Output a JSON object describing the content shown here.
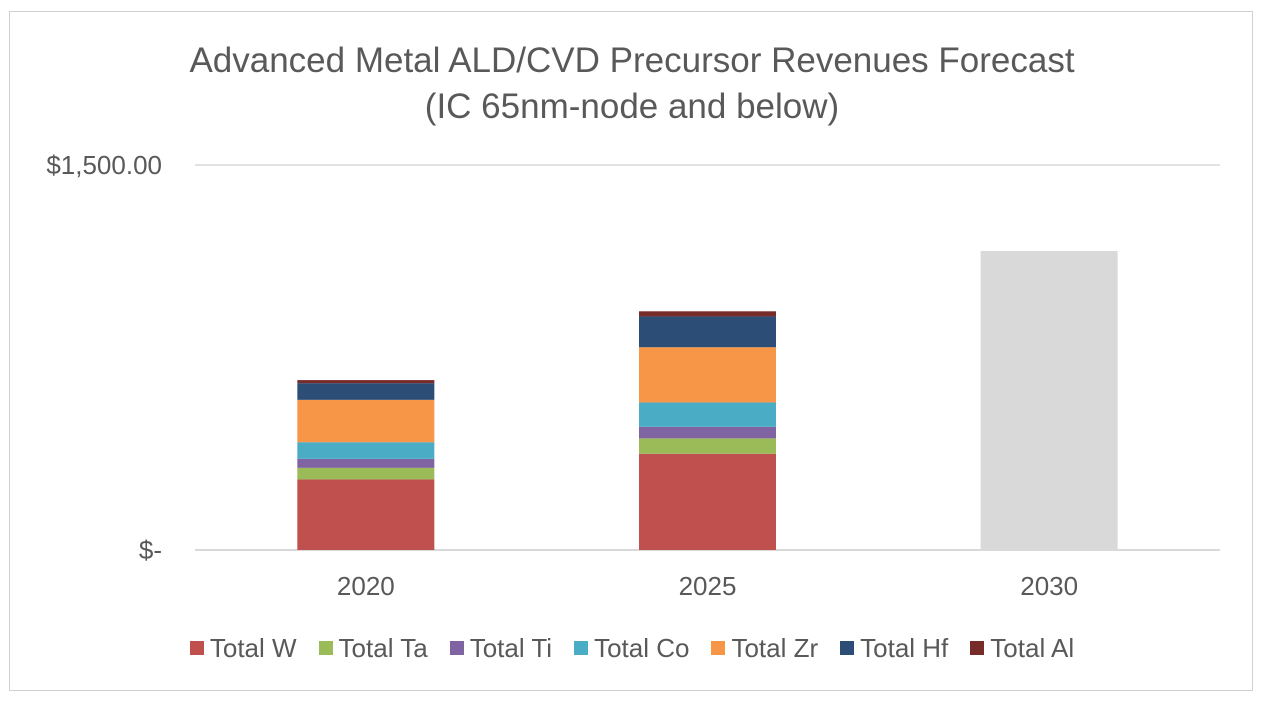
{
  "chart_data": {
    "type": "bar",
    "stacked": true,
    "title": "Advanced Metal ALD/CVD Precursor Revenues Forecast",
    "subtitle": "(IC 65nm-node and below)",
    "categories": [
      "2020",
      "2025",
      "2030"
    ],
    "y_tick_labels": [
      "$-",
      "$1,500.00"
    ],
    "ylim": [
      0,
      1500
    ],
    "gridlines": true,
    "legend_position": "bottom",
    "series": [
      {
        "name": "Total W",
        "color": "#C0504D",
        "values": [
          275,
          375,
          null
        ]
      },
      {
        "name": "Total Ta",
        "color": "#9BBB59",
        "values": [
          45,
          60,
          null
        ]
      },
      {
        "name": "Total Ti",
        "color": "#8064A2",
        "values": [
          35,
          45,
          null
        ]
      },
      {
        "name": "Total Co",
        "color": "#4BACC6",
        "values": [
          65,
          95,
          null
        ]
      },
      {
        "name": "Total Zr",
        "color": "#F79646",
        "values": [
          165,
          215,
          null
        ]
      },
      {
        "name": "Total Hf",
        "color": "#2C4D75",
        "values": [
          65,
          120,
          null
        ]
      },
      {
        "name": "Total Al",
        "color": "#772C2A",
        "values": [
          12,
          20,
          null
        ]
      }
    ],
    "placeholder_bar": {
      "category": "2030",
      "total": 1165,
      "color": "#D9D9D9"
    }
  }
}
